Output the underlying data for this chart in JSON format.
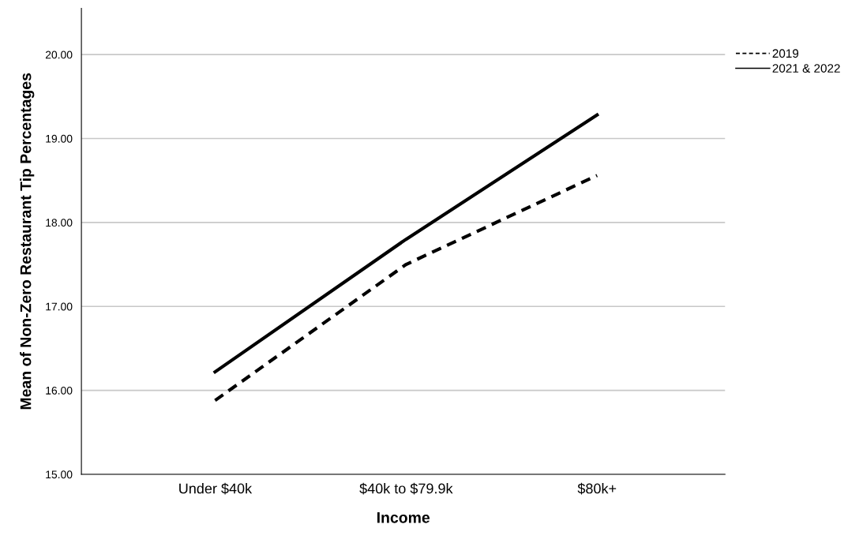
{
  "chart_data": {
    "type": "line",
    "xlabel": "Income",
    "ylabel": "Mean of Non-Zero Restaurant Tip Percentages",
    "categories": [
      "Under $40k",
      "$40k to $79.9k",
      "$80k+"
    ],
    "series": [
      {
        "name": "2019",
        "color": "#000000",
        "line_style": "dashed",
        "values": [
          15.88,
          17.5,
          18.56
        ]
      },
      {
        "name": "2021 & 2022",
        "color": "#000000",
        "line_style": "solid",
        "values": [
          16.22,
          17.8,
          19.28
        ]
      }
    ],
    "ylim": [
      15,
      20.55
    ],
    "yticks": [
      {
        "value": 15,
        "label": "15.00"
      },
      {
        "value": 16,
        "label": "16.00"
      },
      {
        "value": 17,
        "label": "17.00"
      },
      {
        "value": 18,
        "label": "18.00"
      },
      {
        "value": 19,
        "label": "19.00"
      },
      {
        "value": 20,
        "label": "20.00"
      }
    ],
    "grid": "y",
    "legend": "top right",
    "marker": "none"
  }
}
